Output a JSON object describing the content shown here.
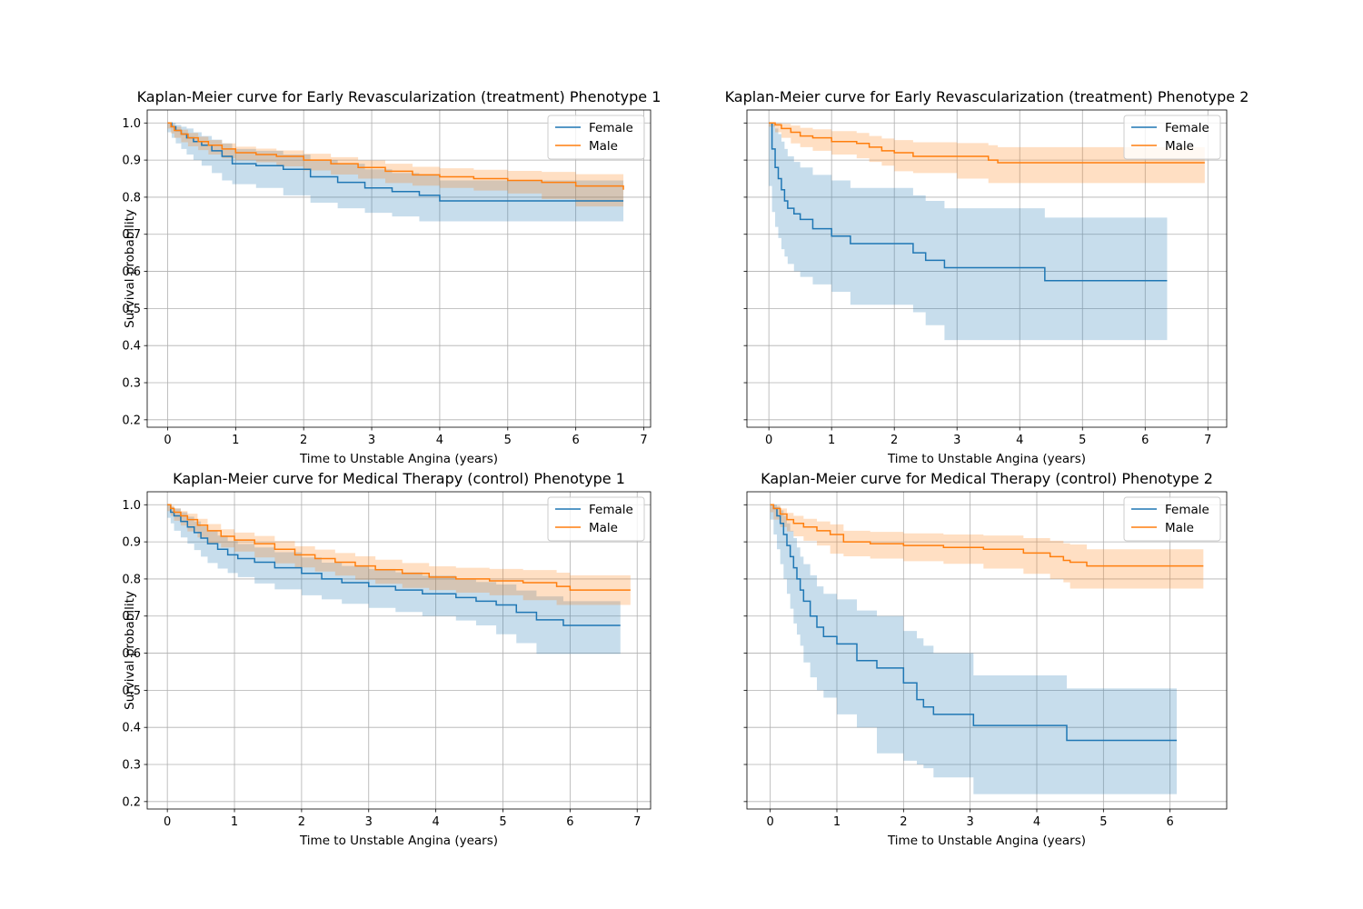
{
  "colors": {
    "female": "#1f77b4",
    "male": "#ff7f0e",
    "grid": "#b0b0b0",
    "axis": "#000000"
  },
  "chart_data": [
    {
      "type": "line",
      "subtype": "kaplan-meier",
      "title": "Kaplan-Meier curve for Early Revascularization (treatment) Phenotype 1",
      "xlabel": "Time to Unstable Angina (years)",
      "ylabel": "Survival probability",
      "xlim": [
        -0.3,
        7.1
      ],
      "ylim": [
        0.18,
        1.035
      ],
      "xticks": [
        "0",
        "1",
        "2",
        "3",
        "4",
        "5",
        "6",
        "7"
      ],
      "yticks": [
        "0.2",
        "0.3",
        "0.4",
        "0.5",
        "0.6",
        "0.7",
        "0.8",
        "0.9",
        "1.0"
      ],
      "show_ytick_labels": true,
      "grid": true,
      "legend": "upper right",
      "series": [
        {
          "name": "Female",
          "color": "#1f77b4",
          "x": [
            0,
            0.06,
            0.12,
            0.2,
            0.28,
            0.38,
            0.5,
            0.65,
            0.8,
            0.95,
            1.3,
            1.7,
            2.1,
            2.5,
            2.9,
            3.3,
            3.7,
            4.0,
            6.7
          ],
          "y": [
            1.0,
            0.99,
            0.98,
            0.97,
            0.96,
            0.95,
            0.94,
            0.925,
            0.91,
            0.89,
            0.885,
            0.875,
            0.855,
            0.84,
            0.825,
            0.815,
            0.805,
            0.79,
            0.79
          ],
          "lower": [
            1.0,
            0.975,
            0.96,
            0.945,
            0.93,
            0.915,
            0.9,
            0.885,
            0.865,
            0.845,
            0.835,
            0.825,
            0.805,
            0.785,
            0.77,
            0.758,
            0.748,
            0.735,
            0.735
          ],
          "upper": [
            1.0,
            1.0,
            0.995,
            0.99,
            0.985,
            0.975,
            0.965,
            0.955,
            0.945,
            0.93,
            0.925,
            0.915,
            0.9,
            0.89,
            0.875,
            0.865,
            0.86,
            0.845,
            0.845
          ]
        },
        {
          "name": "Male",
          "color": "#ff7f0e",
          "x": [
            0,
            0.05,
            0.1,
            0.2,
            0.3,
            0.45,
            0.6,
            0.8,
            1.0,
            1.3,
            1.6,
            2.0,
            2.4,
            2.8,
            3.2,
            3.6,
            4.0,
            4.5,
            5.0,
            5.5,
            6.0,
            6.7
          ],
          "y": [
            1.0,
            0.99,
            0.98,
            0.97,
            0.96,
            0.95,
            0.94,
            0.93,
            0.92,
            0.915,
            0.91,
            0.9,
            0.89,
            0.88,
            0.87,
            0.86,
            0.855,
            0.85,
            0.845,
            0.84,
            0.83,
            0.82
          ],
          "lower": [
            1.0,
            0.985,
            0.972,
            0.96,
            0.948,
            0.937,
            0.927,
            0.915,
            0.905,
            0.9,
            0.894,
            0.883,
            0.872,
            0.861,
            0.85,
            0.838,
            0.831,
            0.825,
            0.818,
            0.81,
            0.795,
            0.775
          ],
          "upper": [
            1.0,
            0.997,
            0.99,
            0.982,
            0.973,
            0.963,
            0.954,
            0.945,
            0.936,
            0.931,
            0.926,
            0.917,
            0.908,
            0.899,
            0.89,
            0.882,
            0.878,
            0.874,
            0.871,
            0.868,
            0.862,
            0.86
          ]
        }
      ]
    },
    {
      "type": "line",
      "subtype": "kaplan-meier",
      "title": "Kaplan-Meier curve for Early Revascularization (treatment) Phenotype 2",
      "xlabel": "Time to Unstable Angina (years)",
      "ylabel": "",
      "xlim": [
        -0.35,
        7.3
      ],
      "ylim": [
        0.18,
        1.035
      ],
      "xticks": [
        "0",
        "1",
        "2",
        "3",
        "4",
        "5",
        "6",
        "7"
      ],
      "yticks": [
        "0.2",
        "0.3",
        "0.4",
        "0.5",
        "0.6",
        "0.7",
        "0.8",
        "0.9",
        "1.0"
      ],
      "show_ytick_labels": false,
      "grid": true,
      "legend": "upper right",
      "series": [
        {
          "name": "Female",
          "color": "#1f77b4",
          "x": [
            0,
            0.05,
            0.1,
            0.15,
            0.2,
            0.25,
            0.3,
            0.4,
            0.5,
            0.7,
            1.0,
            1.3,
            2.3,
            2.5,
            2.8,
            4.4,
            6.35
          ],
          "y": [
            1.0,
            0.93,
            0.88,
            0.85,
            0.82,
            0.79,
            0.77,
            0.755,
            0.74,
            0.715,
            0.695,
            0.675,
            0.65,
            0.63,
            0.61,
            0.575,
            0.575
          ],
          "lower": [
            1.0,
            0.83,
            0.76,
            0.72,
            0.69,
            0.66,
            0.64,
            0.62,
            0.6,
            0.585,
            0.565,
            0.545,
            0.51,
            0.49,
            0.455,
            0.415,
            0.415
          ],
          "upper": [
            1.0,
            1.0,
            0.985,
            0.97,
            0.95,
            0.93,
            0.91,
            0.895,
            0.88,
            0.86,
            0.845,
            0.825,
            0.805,
            0.79,
            0.77,
            0.745,
            0.7
          ]
        },
        {
          "name": "Male",
          "color": "#ff7f0e",
          "x": [
            0,
            0.1,
            0.2,
            0.35,
            0.5,
            0.7,
            1.0,
            1.4,
            1.6,
            1.8,
            2.0,
            2.3,
            3.0,
            3.5,
            3.65,
            6.95
          ],
          "y": [
            1.0,
            0.995,
            0.985,
            0.975,
            0.965,
            0.96,
            0.95,
            0.945,
            0.935,
            0.925,
            0.92,
            0.91,
            0.91,
            0.9,
            0.893,
            0.893
          ],
          "lower": [
            1.0,
            0.99,
            0.975,
            0.96,
            0.945,
            0.935,
            0.925,
            0.915,
            0.905,
            0.895,
            0.885,
            0.87,
            0.865,
            0.85,
            0.838,
            0.838
          ],
          "upper": [
            1.0,
            1.0,
            0.998,
            0.993,
            0.987,
            0.983,
            0.978,
            0.973,
            0.965,
            0.958,
            0.954,
            0.948,
            0.946,
            0.94,
            0.935,
            0.935
          ]
        }
      ]
    },
    {
      "type": "line",
      "subtype": "kaplan-meier",
      "title": "Kaplan-Meier curve for Medical Therapy (control) Phenotype 1",
      "xlabel": "Time to Unstable Angina (years)",
      "ylabel": "Survival probability",
      "xlim": [
        -0.3,
        7.2
      ],
      "ylim": [
        0.18,
        1.035
      ],
      "xticks": [
        "0",
        "1",
        "2",
        "3",
        "4",
        "5",
        "6",
        "7"
      ],
      "yticks": [
        "0.2",
        "0.3",
        "0.4",
        "0.5",
        "0.6",
        "0.7",
        "0.8",
        "0.9",
        "1.0"
      ],
      "show_ytick_labels": true,
      "grid": true,
      "legend": "upper right",
      "series": [
        {
          "name": "Female",
          "color": "#1f77b4",
          "x": [
            0,
            0.05,
            0.1,
            0.2,
            0.3,
            0.4,
            0.5,
            0.6,
            0.75,
            0.9,
            1.05,
            1.3,
            1.6,
            2.0,
            2.3,
            2.6,
            3.0,
            3.4,
            3.8,
            4.3,
            4.6,
            4.9,
            5.2,
            5.5,
            5.9,
            6.75
          ],
          "y": [
            1.0,
            0.98,
            0.97,
            0.955,
            0.94,
            0.925,
            0.91,
            0.895,
            0.88,
            0.865,
            0.855,
            0.845,
            0.83,
            0.815,
            0.8,
            0.79,
            0.78,
            0.77,
            0.76,
            0.75,
            0.74,
            0.73,
            0.71,
            0.69,
            0.675,
            0.675
          ],
          "lower": [
            1.0,
            0.965,
            0.95,
            0.93,
            0.912,
            0.895,
            0.878,
            0.86,
            0.843,
            0.828,
            0.816,
            0.805,
            0.788,
            0.772,
            0.756,
            0.745,
            0.733,
            0.722,
            0.711,
            0.7,
            0.688,
            0.675,
            0.651,
            0.627,
            0.598,
            0.598
          ],
          "upper": [
            1.0,
            0.995,
            0.99,
            0.98,
            0.968,
            0.955,
            0.942,
            0.93,
            0.917,
            0.902,
            0.894,
            0.885,
            0.872,
            0.858,
            0.844,
            0.835,
            0.827,
            0.818,
            0.809,
            0.8,
            0.792,
            0.785,
            0.769,
            0.753,
            0.74,
            0.74
          ]
        },
        {
          "name": "Male",
          "color": "#ff7f0e",
          "x": [
            0,
            0.05,
            0.1,
            0.2,
            0.3,
            0.45,
            0.6,
            0.8,
            1.0,
            1.3,
            1.6,
            1.9,
            2.2,
            2.5,
            2.8,
            3.1,
            3.5,
            3.9,
            4.3,
            4.8,
            5.3,
            5.8,
            6.0,
            6.9
          ],
          "y": [
            1.0,
            0.99,
            0.98,
            0.97,
            0.96,
            0.945,
            0.93,
            0.915,
            0.905,
            0.895,
            0.88,
            0.865,
            0.855,
            0.845,
            0.835,
            0.825,
            0.815,
            0.805,
            0.8,
            0.795,
            0.79,
            0.78,
            0.77,
            0.77
          ],
          "lower": [
            1.0,
            0.983,
            0.97,
            0.957,
            0.944,
            0.928,
            0.912,
            0.896,
            0.885,
            0.874,
            0.858,
            0.842,
            0.831,
            0.82,
            0.809,
            0.798,
            0.787,
            0.776,
            0.77,
            0.763,
            0.756,
            0.743,
            0.73,
            0.73
          ],
          "upper": [
            1.0,
            0.997,
            0.99,
            0.983,
            0.976,
            0.962,
            0.948,
            0.934,
            0.925,
            0.916,
            0.902,
            0.888,
            0.879,
            0.87,
            0.861,
            0.852,
            0.843,
            0.834,
            0.83,
            0.827,
            0.824,
            0.817,
            0.81,
            0.81
          ]
        }
      ]
    },
    {
      "type": "line",
      "subtype": "kaplan-meier",
      "title": "Kaplan-Meier curve for Medical Therapy (control) Phenotype 2",
      "xlabel": "Time to Unstable Angina (years)",
      "ylabel": "",
      "xlim": [
        -0.35,
        6.85
      ],
      "ylim": [
        0.18,
        1.035
      ],
      "xticks": [
        "0",
        "1",
        "2",
        "3",
        "4",
        "5",
        "6"
      ],
      "yticks": [
        "0.2",
        "0.3",
        "0.4",
        "0.5",
        "0.6",
        "0.7",
        "0.8",
        "0.9",
        "1.0"
      ],
      "show_ytick_labels": false,
      "grid": true,
      "legend": "upper right",
      "series": [
        {
          "name": "Female",
          "color": "#1f77b4",
          "x": [
            0,
            0.05,
            0.1,
            0.15,
            0.2,
            0.25,
            0.3,
            0.35,
            0.4,
            0.45,
            0.5,
            0.6,
            0.7,
            0.8,
            1.0,
            1.3,
            1.6,
            2.0,
            2.2,
            2.3,
            2.45,
            3.05,
            4.45,
            6.1
          ],
          "y": [
            1.0,
            0.99,
            0.97,
            0.95,
            0.92,
            0.89,
            0.86,
            0.83,
            0.8,
            0.77,
            0.74,
            0.7,
            0.67,
            0.645,
            0.625,
            0.58,
            0.56,
            0.52,
            0.475,
            0.455,
            0.435,
            0.405,
            0.365,
            0.365
          ],
          "lower": [
            1.0,
            0.96,
            0.92,
            0.88,
            0.84,
            0.8,
            0.76,
            0.72,
            0.68,
            0.65,
            0.62,
            0.575,
            0.535,
            0.5,
            0.48,
            0.435,
            0.4,
            0.33,
            0.31,
            0.3,
            0.29,
            0.265,
            0.22,
            0.22
          ],
          "upper": [
            1.0,
            1.0,
            0.995,
            0.985,
            0.97,
            0.95,
            0.93,
            0.91,
            0.885,
            0.86,
            0.84,
            0.81,
            0.78,
            0.76,
            0.745,
            0.715,
            0.7,
            0.66,
            0.64,
            0.62,
            0.6,
            0.54,
            0.505,
            0.505
          ]
        },
        {
          "name": "Male",
          "color": "#ff7f0e",
          "x": [
            0,
            0.05,
            0.15,
            0.25,
            0.35,
            0.5,
            0.7,
            0.9,
            1.1,
            1.5,
            2.0,
            2.6,
            3.2,
            3.8,
            4.2,
            4.4,
            4.5,
            4.75,
            6.5
          ],
          "y": [
            1.0,
            0.99,
            0.975,
            0.96,
            0.95,
            0.94,
            0.93,
            0.92,
            0.9,
            0.895,
            0.89,
            0.885,
            0.88,
            0.87,
            0.86,
            0.85,
            0.845,
            0.835,
            0.835
          ],
          "lower": [
            1.0,
            0.98,
            0.96,
            0.94,
            0.928,
            0.915,
            0.903,
            0.89,
            0.868,
            0.861,
            0.855,
            0.848,
            0.841,
            0.828,
            0.814,
            0.8,
            0.791,
            0.774,
            0.774
          ],
          "upper": [
            1.0,
            0.998,
            0.99,
            0.978,
            0.97,
            0.962,
            0.955,
            0.947,
            0.93,
            0.927,
            0.923,
            0.92,
            0.917,
            0.91,
            0.903,
            0.896,
            0.893,
            0.88,
            0.88
          ]
        }
      ]
    }
  ]
}
